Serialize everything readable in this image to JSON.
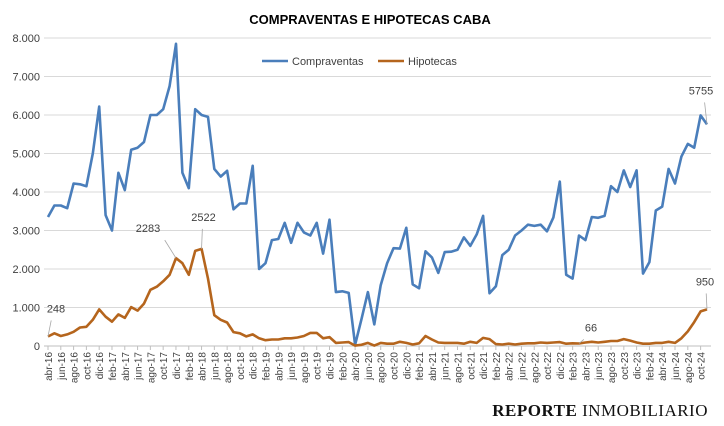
{
  "chart_data": {
    "type": "line",
    "title": "COMPRAVENTAS E HIPOTECAS CABA",
    "xlabel": "",
    "ylabel": "",
    "ylim": [
      0,
      8000
    ],
    "yticks": [
      "0",
      "1.000",
      "2.000",
      "3.000",
      "4.000",
      "5.000",
      "6.000",
      "7.000",
      "8.000"
    ],
    "grid": true,
    "legend": "top-center",
    "x_start": "abr-16",
    "x_end": "nov-24",
    "x_tick_labels": [
      "abr-16",
      "jun-16",
      "ago-16",
      "oct-16",
      "dic-16",
      "feb-17",
      "abr-17",
      "jun-17",
      "ago-17",
      "oct-17",
      "dic-17",
      "feb-18",
      "abr-18",
      "jun-18",
      "ago-18",
      "oct-18",
      "dic-18",
      "feb-19",
      "abr-19",
      "jun-19",
      "ago-19",
      "oct-19",
      "dic-19",
      "feb-20",
      "abr-20",
      "jun-20",
      "ago-20",
      "oct-20",
      "dic-20",
      "feb-21",
      "abr-21",
      "jun-21",
      "ago-21",
      "oct-21",
      "dic-21",
      "feb-22",
      "abr-22",
      "jun-22",
      "ago-22",
      "oct-22",
      "dic-22",
      "feb-23",
      "abr-23",
      "jun-23",
      "ago-23",
      "oct-23",
      "dic-23",
      "feb-24",
      "abr-24",
      "jun-24",
      "ago-24",
      "oct-24"
    ],
    "series": [
      {
        "name": "Compraventas",
        "color": "#4a7ebb",
        "values": [
          3350,
          3650,
          3650,
          3580,
          4220,
          4200,
          4150,
          5000,
          6220,
          3400,
          3000,
          4500,
          4050,
          5100,
          5150,
          5300,
          6000,
          6000,
          6150,
          6750,
          7850,
          4500,
          4100,
          6150,
          6000,
          5950,
          4600,
          4400,
          4550,
          3550,
          3700,
          3700,
          4680,
          2000,
          2150,
          2750,
          2780,
          3200,
          2680,
          3200,
          2950,
          2870,
          3200,
          2400,
          3280,
          1400,
          1420,
          1380,
          30,
          700,
          1400,
          560,
          1580,
          2150,
          2540,
          2530,
          3070,
          1600,
          1500,
          2460,
          2300,
          1900,
          2440,
          2450,
          2500,
          2820,
          2600,
          2900,
          3380,
          1370,
          1550,
          2360,
          2500,
          2870,
          3000,
          3150,
          3120,
          3150,
          2980,
          3340,
          4270,
          1850,
          1750,
          2870,
          2750,
          3350,
          3330,
          3380,
          4150,
          4000,
          4560,
          4130,
          4560,
          1880,
          2180,
          3520,
          3620,
          4600,
          4220,
          4920,
          5250,
          5150,
          5990,
          5755
        ]
      },
      {
        "name": "Hipotecas",
        "color": "#b5651d",
        "values": [
          248,
          330,
          260,
          300,
          370,
          480,
          500,
          680,
          950,
          760,
          630,
          820,
          730,
          1010,
          920,
          1100,
          1460,
          1540,
          1680,
          1850,
          2283,
          2150,
          1850,
          2470,
          2522,
          1750,
          800,
          680,
          610,
          360,
          330,
          250,
          300,
          200,
          150,
          170,
          170,
          200,
          200,
          220,
          260,
          340,
          340,
          200,
          230,
          80,
          90,
          100,
          10,
          30,
          80,
          10,
          80,
          60,
          60,
          110,
          80,
          40,
          70,
          260,
          170,
          90,
          80,
          80,
          80,
          60,
          110,
          80,
          210,
          180,
          50,
          40,
          60,
          40,
          60,
          70,
          70,
          90,
          80,
          90,
          100,
          60,
          70,
          66,
          90,
          110,
          90,
          110,
          130,
          130,
          180,
          140,
          90,
          60,
          60,
          80,
          80,
          110,
          80,
          200,
          380,
          620,
          900,
          950
        ]
      }
    ],
    "annotations": [
      {
        "series": 1,
        "label": "248",
        "x": "abr-16"
      },
      {
        "series": 1,
        "label": "2283",
        "x": "dic-17"
      },
      {
        "series": 1,
        "label": "2522",
        "x": "abr-18"
      },
      {
        "series": 1,
        "label": "66",
        "x": "mar-23"
      },
      {
        "series": 1,
        "label": "950",
        "x": "nov-24"
      },
      {
        "series": 0,
        "label": "5755",
        "x": "nov-24"
      }
    ]
  },
  "brand": {
    "part1": "REPORTE",
    "part2": "INMOBILIARIO"
  }
}
